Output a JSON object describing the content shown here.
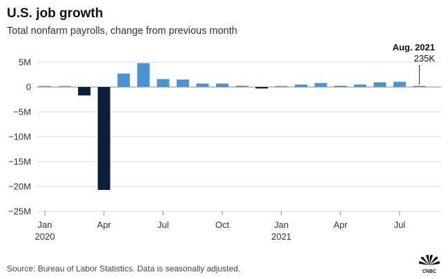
{
  "header": {
    "title": "U.S. job growth",
    "subtitle": "Total nonfarm payrolls, change from previous month"
  },
  "footer": {
    "source": "Source: Bureau of Labor Statistics. Data is seasonally adjusted.",
    "logo_text": "CNBC"
  },
  "colors": {
    "positive": "#4a94d4",
    "negative": "#0b1f3a",
    "grid": "#d9d9d9",
    "axis": "#888888"
  },
  "chart_data": {
    "type": "bar",
    "title": "U.S. job growth",
    "subtitle": "Total nonfarm payrolls, change from previous month",
    "ylabel": "",
    "xlabel": "",
    "ylim": [
      -25,
      5
    ],
    "y_unit": "millions",
    "grid": true,
    "categories": [
      "Jan 2020",
      "Feb 2020",
      "Mar 2020",
      "Apr 2020",
      "May 2020",
      "Jun 2020",
      "Jul 2020",
      "Aug 2020",
      "Sep 2020",
      "Oct 2020",
      "Nov 2020",
      "Dec 2020",
      "Jan 2021",
      "Feb 2021",
      "Mar 2021",
      "Apr 2021",
      "May 2021",
      "Jun 2021",
      "Jul 2021",
      "Aug 2021"
    ],
    "values": [
      0.2,
      0.2,
      -1.7,
      -20.7,
      2.7,
      4.8,
      1.6,
      1.5,
      0.7,
      0.7,
      0.25,
      -0.3,
      0.2,
      0.5,
      0.8,
      0.25,
      0.5,
      0.95,
      1.05,
      0.235
    ],
    "y_ticks": [
      {
        "value": 5,
        "label": "5M"
      },
      {
        "value": 0,
        "label": "0"
      },
      {
        "value": -5,
        "label": "−5M"
      },
      {
        "value": -10,
        "label": "−10M"
      },
      {
        "value": -15,
        "label": "−15M"
      },
      {
        "value": -20,
        "label": "−20M"
      },
      {
        "value": -25,
        "label": "−25M"
      }
    ],
    "x_ticks": [
      {
        "index": 0,
        "label": "Jan",
        "sublabel": "2020"
      },
      {
        "index": 3,
        "label": "Apr",
        "sublabel": ""
      },
      {
        "index": 6,
        "label": "Jul",
        "sublabel": ""
      },
      {
        "index": 9,
        "label": "Oct",
        "sublabel": ""
      },
      {
        "index": 12,
        "label": "Jan",
        "sublabel": "2021"
      },
      {
        "index": 15,
        "label": "Apr",
        "sublabel": ""
      },
      {
        "index": 18,
        "label": "Jul",
        "sublabel": ""
      }
    ],
    "annotation": {
      "index": 19,
      "label": "Aug. 2021",
      "value_label": "235K"
    }
  }
}
